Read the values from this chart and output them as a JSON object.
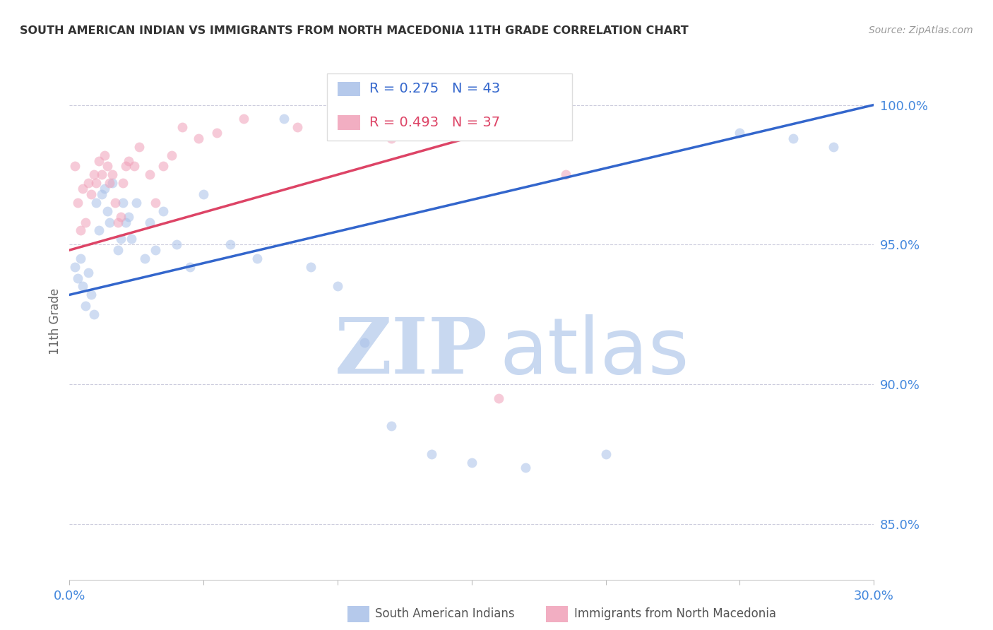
{
  "title": "SOUTH AMERICAN INDIAN VS IMMIGRANTS FROM NORTH MACEDONIA 11TH GRADE CORRELATION CHART",
  "source": "Source: ZipAtlas.com",
  "ylabel": "11th Grade",
  "y_ticks": [
    85.0,
    90.0,
    95.0,
    100.0
  ],
  "y_tick_labels": [
    "85.0%",
    "90.0%",
    "95.0%",
    "100.0%"
  ],
  "x_range": [
    0.0,
    30.0
  ],
  "y_range": [
    83.0,
    101.5
  ],
  "blue_R": 0.275,
  "blue_N": 43,
  "pink_R": 0.493,
  "pink_N": 37,
  "blue_color": "#A8C0E8",
  "pink_color": "#F0A0B8",
  "line_blue": "#3366CC",
  "line_pink": "#DD4466",
  "legend_text_color_blue": "#3366CC",
  "legend_text_color_pink": "#DD4466",
  "axis_label_color": "#4488DD",
  "grid_color": "#CCCCDD",
  "watermark_zip_color": "#C8D8F0",
  "watermark_atlas_color": "#C8D8F0",
  "blue_scatter_x": [
    0.2,
    0.3,
    0.4,
    0.5,
    0.6,
    0.7,
    0.8,
    0.9,
    1.0,
    1.1,
    1.2,
    1.3,
    1.4,
    1.5,
    1.6,
    1.8,
    1.9,
    2.0,
    2.1,
    2.2,
    2.3,
    2.5,
    2.8,
    3.0,
    3.2,
    3.5,
    4.0,
    4.5,
    5.0,
    6.0,
    7.0,
    8.0,
    9.0,
    10.0,
    11.0,
    12.0,
    13.5,
    15.0,
    17.0,
    20.0,
    25.0,
    27.0,
    28.5
  ],
  "blue_scatter_y": [
    94.2,
    93.8,
    94.5,
    93.5,
    92.8,
    94.0,
    93.2,
    92.5,
    96.5,
    95.5,
    96.8,
    97.0,
    96.2,
    95.8,
    97.2,
    94.8,
    95.2,
    96.5,
    95.8,
    96.0,
    95.2,
    96.5,
    94.5,
    95.8,
    94.8,
    96.2,
    95.0,
    94.2,
    96.8,
    95.0,
    94.5,
    99.5,
    94.2,
    93.5,
    91.5,
    88.5,
    87.5,
    87.2,
    87.0,
    87.5,
    99.0,
    98.8,
    98.5
  ],
  "pink_scatter_x": [
    0.2,
    0.3,
    0.4,
    0.5,
    0.6,
    0.7,
    0.8,
    0.9,
    1.0,
    1.1,
    1.2,
    1.3,
    1.4,
    1.5,
    1.6,
    1.7,
    1.8,
    1.9,
    2.0,
    2.1,
    2.2,
    2.4,
    2.6,
    3.0,
    3.2,
    3.5,
    3.8,
    4.2,
    4.8,
    5.5,
    6.5,
    8.5,
    10.0,
    12.0,
    14.0,
    16.0,
    18.5
  ],
  "pink_scatter_y": [
    97.8,
    96.5,
    95.5,
    97.0,
    95.8,
    97.2,
    96.8,
    97.5,
    97.2,
    98.0,
    97.5,
    98.2,
    97.8,
    97.2,
    97.5,
    96.5,
    95.8,
    96.0,
    97.2,
    97.8,
    98.0,
    97.8,
    98.5,
    97.5,
    96.5,
    97.8,
    98.2,
    99.2,
    98.8,
    99.0,
    99.5,
    99.2,
    99.0,
    98.8,
    99.2,
    89.5,
    97.5
  ],
  "blue_line_x": [
    0.0,
    30.0
  ],
  "blue_line_y": [
    93.2,
    100.0
  ],
  "pink_line_x": [
    0.0,
    18.5
  ],
  "pink_line_y": [
    94.8,
    99.8
  ],
  "scatter_size": 100,
  "scatter_alpha": 0.55,
  "bottom_legend_blue_label": "South American Indians",
  "bottom_legend_pink_label": "Immigrants from North Macedonia"
}
